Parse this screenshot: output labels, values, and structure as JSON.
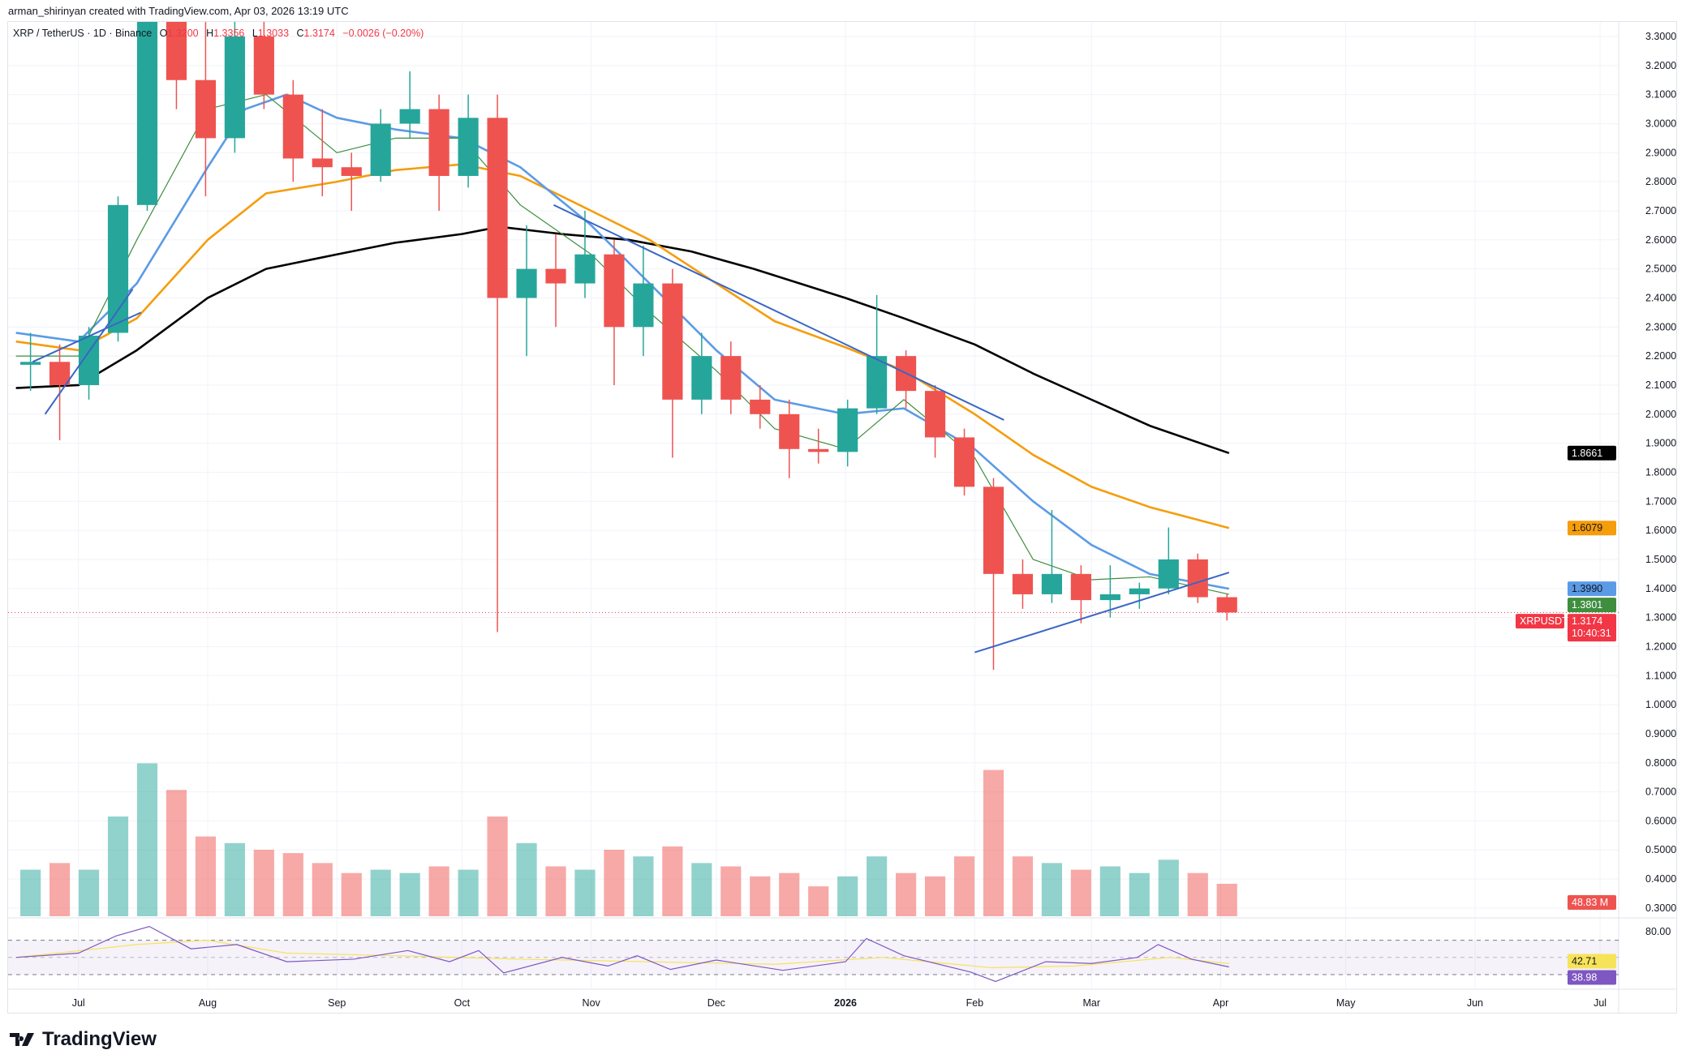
{
  "credit": "arman_shirinyan created with TradingView.com, Apr 03, 2026 13:19 UTC",
  "legend": {
    "symbol": "XRP / TetherUS · 1D · Binance",
    "o_label": "O",
    "o": "1.3200",
    "h_label": "H",
    "h": "1.3356",
    "l_label": "L",
    "l": "1.3033",
    "c_label": "C",
    "c": "1.3174",
    "change": "−0.0026 (−0.20%)"
  },
  "logo": "TradingView",
  "colors": {
    "up": "#26a69a",
    "down": "#ef5350",
    "ma_black": "#000000",
    "ma_orange": "#f59d0b",
    "ma_blue": "#5b9be6",
    "ma_green": "#3e8e3e",
    "trendline": "#3a66c4",
    "rsi": "#7e57c2",
    "rsi_ma": "#f7e35a"
  },
  "chart_data": {
    "type": "candlestick",
    "timeframe_shown": "1D",
    "price_ticks": [
      "3.3000",
      "3.2000",
      "3.1000",
      "3.0000",
      "2.9000",
      "2.8000",
      "2.7000",
      "2.6000",
      "2.5000",
      "2.4000",
      "2.3000",
      "2.2000",
      "2.1000",
      "2.0000",
      "1.9000",
      "1.8000",
      "1.7000",
      "1.6000",
      "1.5000",
      "1.4000",
      "1.3000",
      "1.2000",
      "1.1000",
      "1.0000",
      "0.9000",
      "0.8000",
      "0.7000",
      "0.6000",
      "0.5000",
      "0.4000",
      "0.3000"
    ],
    "time_ticks": [
      {
        "label": "Jul",
        "date": "2025-07-01"
      },
      {
        "label": "Aug",
        "date": "2025-08-01"
      },
      {
        "label": "Sep",
        "date": "2025-09-01"
      },
      {
        "label": "Oct",
        "date": "2025-10-01"
      },
      {
        "label": "Nov",
        "date": "2025-11-01"
      },
      {
        "label": "Dec",
        "date": "2025-12-01"
      },
      {
        "label": "2026",
        "date": "2026-01-01",
        "bold": true
      },
      {
        "label": "Feb",
        "date": "2026-02-01"
      },
      {
        "label": "Mar",
        "date": "2026-03-01"
      },
      {
        "label": "Apr",
        "date": "2026-04-01"
      },
      {
        "label": "May",
        "date": "2026-05-01"
      },
      {
        "label": "Jun",
        "date": "2026-06-01"
      },
      {
        "label": "Jul",
        "date": "2026-07-01"
      }
    ],
    "candles_weekly_approx": [
      [
        "2025-06-16",
        2.17,
        2.28,
        2.08,
        2.18,
        70
      ],
      [
        "2025-06-23",
        2.18,
        2.24,
        1.91,
        2.1,
        80
      ],
      [
        "2025-06-30",
        2.1,
        2.3,
        2.05,
        2.27,
        70
      ],
      [
        "2025-07-07",
        2.28,
        2.75,
        2.25,
        2.72,
        150
      ],
      [
        "2025-07-14",
        2.72,
        3.6,
        2.7,
        3.4,
        230
      ],
      [
        "2025-07-21",
        3.4,
        3.65,
        3.05,
        3.15,
        190
      ],
      [
        "2025-07-28",
        3.15,
        3.35,
        2.75,
        2.95,
        120
      ],
      [
        "2025-08-04",
        2.95,
        3.38,
        2.9,
        3.3,
        110
      ],
      [
        "2025-08-11",
        3.3,
        3.38,
        3.05,
        3.1,
        100
      ],
      [
        "2025-08-18",
        3.1,
        3.15,
        2.8,
        2.88,
        95
      ],
      [
        "2025-08-25",
        2.88,
        3.05,
        2.75,
        2.85,
        80
      ],
      [
        "2025-09-01",
        2.85,
        2.9,
        2.7,
        2.82,
        65
      ],
      [
        "2025-09-08",
        2.82,
        3.05,
        2.8,
        3.0,
        70
      ],
      [
        "2025-09-15",
        3.0,
        3.18,
        2.95,
        3.05,
        65
      ],
      [
        "2025-09-22",
        3.05,
        3.1,
        2.7,
        2.82,
        75
      ],
      [
        "2025-09-29",
        2.82,
        3.1,
        2.78,
        3.02,
        70
      ],
      [
        "2025-10-06",
        3.02,
        3.1,
        1.25,
        2.4,
        150
      ],
      [
        "2025-10-13",
        2.4,
        2.65,
        2.2,
        2.5,
        110
      ],
      [
        "2025-10-20",
        2.5,
        2.62,
        2.3,
        2.45,
        75
      ],
      [
        "2025-10-27",
        2.45,
        2.7,
        2.4,
        2.55,
        70
      ],
      [
        "2025-11-03",
        2.55,
        2.6,
        2.1,
        2.3,
        100
      ],
      [
        "2025-11-10",
        2.3,
        2.58,
        2.2,
        2.45,
        90
      ],
      [
        "2025-11-17",
        2.45,
        2.5,
        1.85,
        2.05,
        105
      ],
      [
        "2025-11-24",
        2.05,
        2.28,
        2.0,
        2.2,
        80
      ],
      [
        "2025-12-01",
        2.2,
        2.25,
        2.0,
        2.05,
        75
      ],
      [
        "2025-12-08",
        2.05,
        2.1,
        1.95,
        2.0,
        60
      ],
      [
        "2025-12-15",
        2.0,
        2.05,
        1.78,
        1.88,
        65
      ],
      [
        "2025-12-22",
        1.88,
        1.95,
        1.83,
        1.87,
        45
      ],
      [
        "2025-12-29",
        1.87,
        2.05,
        1.82,
        2.02,
        60
      ],
      [
        "2026-01-05",
        2.02,
        2.41,
        2.0,
        2.2,
        90
      ],
      [
        "2026-01-12",
        2.2,
        2.22,
        2.02,
        2.08,
        65
      ],
      [
        "2026-01-19",
        2.08,
        2.1,
        1.85,
        1.92,
        60
      ],
      [
        "2026-01-26",
        1.92,
        1.95,
        1.72,
        1.75,
        90
      ],
      [
        "2026-02-02",
        1.75,
        1.78,
        1.12,
        1.45,
        220
      ],
      [
        "2026-02-09",
        1.45,
        1.5,
        1.33,
        1.38,
        90
      ],
      [
        "2026-02-16",
        1.38,
        1.67,
        1.35,
        1.45,
        80
      ],
      [
        "2026-02-23",
        1.45,
        1.48,
        1.28,
        1.36,
        70
      ],
      [
        "2026-03-02",
        1.36,
        1.48,
        1.3,
        1.38,
        75
      ],
      [
        "2026-03-09",
        1.38,
        1.42,
        1.33,
        1.4,
        65
      ],
      [
        "2026-03-16",
        1.4,
        1.61,
        1.38,
        1.5,
        85
      ],
      [
        "2026-03-23",
        1.5,
        1.52,
        1.35,
        1.37,
        65
      ],
      [
        "2026-03-30",
        1.37,
        1.38,
        1.29,
        1.3174,
        48.83
      ]
    ],
    "candle_columns": [
      "week_start",
      "open",
      "high",
      "low",
      "close",
      "volume_m"
    ],
    "moving_averages": [
      {
        "color_key": "ma_black",
        "last": "1.8661",
        "points": [
          [
            "2025-06-16",
            2.09
          ],
          [
            "2025-07-01",
            2.1
          ],
          [
            "2025-07-15",
            2.22
          ],
          [
            "2025-08-01",
            2.4
          ],
          [
            "2025-08-15",
            2.5
          ],
          [
            "2025-09-01",
            2.55
          ],
          [
            "2025-09-15",
            2.59
          ],
          [
            "2025-10-01",
            2.62
          ],
          [
            "2025-10-10",
            2.645
          ],
          [
            "2025-10-25",
            2.62
          ],
          [
            "2025-11-10",
            2.6
          ],
          [
            "2025-11-25",
            2.56
          ],
          [
            "2025-12-10",
            2.5
          ],
          [
            "2026-01-01",
            2.4
          ],
          [
            "2026-01-15",
            2.33
          ],
          [
            "2026-02-01",
            2.24
          ],
          [
            "2026-02-15",
            2.14
          ],
          [
            "2026-03-01",
            2.05
          ],
          [
            "2026-03-15",
            1.96
          ],
          [
            "2026-04-03",
            1.866
          ]
        ]
      },
      {
        "color_key": "ma_orange",
        "last": "1.6079",
        "points": [
          [
            "2025-06-16",
            2.25
          ],
          [
            "2025-07-01",
            2.22
          ],
          [
            "2025-07-15",
            2.33
          ],
          [
            "2025-08-01",
            2.6
          ],
          [
            "2025-08-15",
            2.76
          ],
          [
            "2025-09-01",
            2.8
          ],
          [
            "2025-09-15",
            2.84
          ],
          [
            "2025-10-01",
            2.86
          ],
          [
            "2025-10-15",
            2.82
          ],
          [
            "2025-11-01",
            2.7
          ],
          [
            "2025-11-15",
            2.6
          ],
          [
            "2025-12-01",
            2.45
          ],
          [
            "2025-12-15",
            2.32
          ],
          [
            "2026-01-01",
            2.23
          ],
          [
            "2026-01-15",
            2.15
          ],
          [
            "2026-02-01",
            2.0
          ],
          [
            "2026-02-15",
            1.86
          ],
          [
            "2026-03-01",
            1.75
          ],
          [
            "2026-03-15",
            1.68
          ],
          [
            "2026-04-03",
            1.608
          ]
        ]
      },
      {
        "color_key": "ma_blue",
        "last": "1.3990",
        "points": [
          [
            "2025-06-16",
            2.28
          ],
          [
            "2025-07-01",
            2.25
          ],
          [
            "2025-07-15",
            2.45
          ],
          [
            "2025-08-01",
            2.85
          ],
          [
            "2025-08-10",
            3.05
          ],
          [
            "2025-08-20",
            3.1
          ],
          [
            "2025-09-01",
            3.02
          ],
          [
            "2025-09-15",
            2.98
          ],
          [
            "2025-10-01",
            2.95
          ],
          [
            "2025-10-15",
            2.85
          ],
          [
            "2025-11-01",
            2.65
          ],
          [
            "2025-11-15",
            2.45
          ],
          [
            "2025-12-01",
            2.22
          ],
          [
            "2025-12-15",
            2.05
          ],
          [
            "2026-01-01",
            2.0
          ],
          [
            "2026-01-15",
            2.02
          ],
          [
            "2026-02-01",
            1.88
          ],
          [
            "2026-02-15",
            1.7
          ],
          [
            "2026-03-01",
            1.55
          ],
          [
            "2026-03-15",
            1.45
          ],
          [
            "2026-04-03",
            1.399
          ]
        ]
      },
      {
        "color_key": "ma_green",
        "last": "1.3801",
        "thin": true,
        "points": [
          [
            "2025-06-16",
            2.2
          ],
          [
            "2025-07-01",
            2.2
          ],
          [
            "2025-07-15",
            2.6
          ],
          [
            "2025-08-01",
            3.05
          ],
          [
            "2025-08-15",
            3.1
          ],
          [
            "2025-09-01",
            2.9
          ],
          [
            "2025-09-15",
            2.95
          ],
          [
            "2025-10-01",
            2.95
          ],
          [
            "2025-10-15",
            2.72
          ],
          [
            "2025-11-01",
            2.55
          ],
          [
            "2025-11-15",
            2.35
          ],
          [
            "2025-12-01",
            2.15
          ],
          [
            "2025-12-15",
            1.95
          ],
          [
            "2026-01-01",
            1.88
          ],
          [
            "2026-01-15",
            2.05
          ],
          [
            "2026-02-01",
            1.85
          ],
          [
            "2026-02-15",
            1.5
          ],
          [
            "2026-03-01",
            1.43
          ],
          [
            "2026-03-15",
            1.44
          ],
          [
            "2026-04-03",
            1.38
          ]
        ]
      }
    ],
    "trendlines": [
      [
        [
          "2025-06-23",
          2.0
        ],
        [
          "2025-07-14",
          2.43
        ]
      ],
      [
        [
          "2025-06-20",
          2.18
        ],
        [
          "2025-07-16",
          2.35
        ]
      ],
      [
        [
          "2025-10-23",
          2.72
        ],
        [
          "2026-02-08",
          1.98
        ]
      ],
      [
        [
          "2026-02-01",
          1.18
        ],
        [
          "2026-04-03",
          1.455
        ]
      ]
    ],
    "last_price": {
      "symbol_label": "XRPUSDT",
      "value": "1.3174",
      "countdown": "10:40:31",
      "price": 1.3174
    },
    "volume_last": "48.83 M",
    "rsi": {
      "ticks": [
        "80.00"
      ],
      "bands": [
        70,
        30
      ],
      "value": "38.98",
      "ma_value": "42.71",
      "points": [
        [
          "2025-06-16",
          50
        ],
        [
          "2025-07-01",
          55
        ],
        [
          "2025-07-10",
          75
        ],
        [
          "2025-07-18",
          86
        ],
        [
          "2025-07-28",
          60
        ],
        [
          "2025-08-08",
          65
        ],
        [
          "2025-08-20",
          45
        ],
        [
          "2025-09-05",
          48
        ],
        [
          "2025-09-18",
          58
        ],
        [
          "2025-09-28",
          45
        ],
        [
          "2025-10-05",
          58
        ],
        [
          "2025-10-11",
          32
        ],
        [
          "2025-10-25",
          50
        ],
        [
          "2025-11-05",
          40
        ],
        [
          "2025-11-12",
          52
        ],
        [
          "2025-11-20",
          36
        ],
        [
          "2025-12-01",
          47
        ],
        [
          "2025-12-17",
          35
        ],
        [
          "2026-01-01",
          45
        ],
        [
          "2026-01-06",
          72
        ],
        [
          "2026-01-15",
          52
        ],
        [
          "2026-01-31",
          33
        ],
        [
          "2026-02-06",
          22
        ],
        [
          "2026-02-18",
          45
        ],
        [
          "2026-03-01",
          43
        ],
        [
          "2026-03-12",
          50
        ],
        [
          "2026-03-17",
          65
        ],
        [
          "2026-03-25",
          48
        ],
        [
          "2026-04-03",
          38.98
        ]
      ],
      "ma_points": [
        [
          "2025-06-16",
          50
        ],
        [
          "2025-07-15",
          65
        ],
        [
          "2025-08-01",
          70
        ],
        [
          "2025-08-20",
          55
        ],
        [
          "2025-09-15",
          52
        ],
        [
          "2025-10-15",
          48
        ],
        [
          "2025-11-15",
          45
        ],
        [
          "2025-12-15",
          42
        ],
        [
          "2026-01-10",
          50
        ],
        [
          "2026-02-05",
          38
        ],
        [
          "2026-02-25",
          40
        ],
        [
          "2026-03-20",
          50
        ],
        [
          "2026-04-03",
          42.71
        ]
      ]
    }
  }
}
